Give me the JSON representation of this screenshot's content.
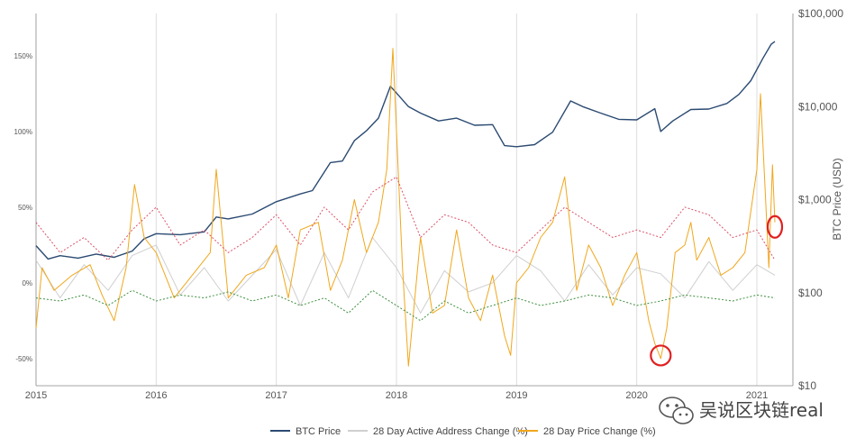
{
  "chart_data": {
    "type": "line",
    "x_ticks": [
      "2015",
      "2016",
      "2017",
      "2018",
      "2019",
      "2020",
      "2021"
    ],
    "left_axis": {
      "ticks": [
        "150%",
        "100%",
        "50%",
        "0%",
        "-50%"
      ],
      "values": [
        150,
        100,
        50,
        0,
        -50
      ],
      "range": [
        -68,
        178
      ]
    },
    "right_axis": {
      "label": "BTC Price (USD)",
      "scale": "log",
      "ticks": [
        "$100,000",
        "$10,000",
        "$1,000",
        "$100",
        "$10"
      ],
      "values": [
        100000,
        10000,
        1000,
        100,
        10
      ],
      "range": [
        10,
        100000
      ]
    },
    "x_range": [
      2015.0,
      2021.3
    ],
    "series": [
      {
        "name": "BTC Price",
        "color": "#2b4a72",
        "axis": "right",
        "x": [
          2015.0,
          2015.1,
          2015.2,
          2015.35,
          2015.5,
          2015.65,
          2015.8,
          2015.9,
          2016.0,
          2016.2,
          2016.4,
          2016.5,
          2016.6,
          2016.8,
          2017.0,
          2017.2,
          2017.3,
          2017.45,
          2017.55,
          2017.65,
          2017.75,
          2017.85,
          2017.95,
          2018.0,
          2018.1,
          2018.2,
          2018.35,
          2018.5,
          2018.65,
          2018.8,
          2018.9,
          2019.0,
          2019.15,
          2019.3,
          2019.45,
          2019.55,
          2019.7,
          2019.85,
          2020.0,
          2020.15,
          2020.2,
          2020.3,
          2020.45,
          2020.6,
          2020.75,
          2020.85,
          2020.95,
          2021.05,
          2021.12,
          2021.15
        ],
        "y": [
          320,
          230,
          250,
          235,
          260,
          240,
          280,
          380,
          430,
          420,
          450,
          650,
          620,
          700,
          950,
          1150,
          1250,
          2500,
          2600,
          4300,
          5500,
          7500,
          16500,
          14000,
          10000,
          8500,
          7000,
          7500,
          6300,
          6400,
          3800,
          3700,
          3900,
          5300,
          11500,
          10000,
          8500,
          7300,
          7200,
          9500,
          5400,
          7000,
          9300,
          9400,
          10800,
          13500,
          19000,
          33000,
          47000,
          50000
        ]
      },
      {
        "name": "28 Day Active Address Change (%)",
        "color": "#cfcfcf",
        "axis": "left",
        "x": [
          2015.0,
          2015.2,
          2015.4,
          2015.6,
          2015.8,
          2016.0,
          2016.2,
          2016.4,
          2016.6,
          2016.8,
          2017.0,
          2017.2,
          2017.4,
          2017.6,
          2017.8,
          2018.0,
          2018.2,
          2018.4,
          2018.6,
          2018.8,
          2019.0,
          2019.2,
          2019.4,
          2019.6,
          2019.8,
          2020.0,
          2020.2,
          2020.4,
          2020.6,
          2020.8,
          2021.0,
          2021.15
        ],
        "y": [
          15,
          -10,
          12,
          -5,
          18,
          25,
          -8,
          10,
          -12,
          5,
          22,
          -15,
          20,
          -10,
          30,
          10,
          -20,
          8,
          -6,
          0,
          18,
          8,
          -12,
          12,
          -8,
          10,
          6,
          -10,
          14,
          -5,
          12,
          5
        ]
      },
      {
        "name": "28 Day Price Change (%)",
        "color": "#f0a71c",
        "axis": "left",
        "x": [
          2015.0,
          2015.05,
          2015.15,
          2015.3,
          2015.45,
          2015.55,
          2015.65,
          2015.75,
          2015.82,
          2015.9,
          2016.0,
          2016.15,
          2016.3,
          2016.45,
          2016.5,
          2016.6,
          2016.75,
          2016.9,
          2017.0,
          2017.1,
          2017.2,
          2017.35,
          2017.45,
          2017.55,
          2017.65,
          2017.75,
          2017.85,
          2017.92,
          2017.97,
          2018.05,
          2018.1,
          2018.2,
          2018.3,
          2018.4,
          2018.5,
          2018.6,
          2018.7,
          2018.8,
          2018.9,
          2018.95,
          2019.0,
          2019.1,
          2019.2,
          2019.3,
          2019.4,
          2019.45,
          2019.5,
          2019.6,
          2019.7,
          2019.8,
          2019.9,
          2020.0,
          2020.1,
          2020.15,
          2020.2,
          2020.25,
          2020.32,
          2020.4,
          2020.45,
          2020.5,
          2020.6,
          2020.7,
          2020.8,
          2020.9,
          2021.0,
          2021.03,
          2021.07,
          2021.1,
          2021.13,
          2021.15
        ],
        "y": [
          -30,
          10,
          -5,
          5,
          12,
          -8,
          -25,
          10,
          65,
          30,
          20,
          -10,
          5,
          20,
          75,
          -10,
          5,
          10,
          25,
          -10,
          35,
          40,
          -5,
          15,
          55,
          20,
          40,
          75,
          155,
          10,
          -55,
          30,
          -20,
          -15,
          35,
          -10,
          -25,
          5,
          -35,
          -48,
          0,
          10,
          30,
          40,
          70,
          35,
          -5,
          25,
          10,
          -15,
          5,
          20,
          -25,
          -40,
          -50,
          -30,
          20,
          25,
          40,
          15,
          30,
          5,
          10,
          20,
          75,
          125,
          60,
          10,
          78,
          40
        ]
      },
      {
        "name": "",
        "color": "#d9536a",
        "axis": "left",
        "dashed": true,
        "x": [
          2015.0,
          2015.2,
          2015.4,
          2015.6,
          2015.8,
          2016.0,
          2016.2,
          2016.4,
          2016.6,
          2016.8,
          2017.0,
          2017.2,
          2017.4,
          2017.6,
          2017.8,
          2018.0,
          2018.2,
          2018.4,
          2018.6,
          2018.8,
          2019.0,
          2019.2,
          2019.4,
          2019.6,
          2019.8,
          2020.0,
          2020.2,
          2020.4,
          2020.6,
          2020.8,
          2021.0,
          2021.15
        ],
        "y": [
          40,
          20,
          30,
          15,
          35,
          50,
          25,
          35,
          20,
          30,
          45,
          25,
          50,
          35,
          60,
          70,
          30,
          45,
          40,
          25,
          20,
          35,
          50,
          40,
          30,
          35,
          30,
          50,
          45,
          30,
          35,
          15
        ]
      },
      {
        "name": "",
        "color": "#3f8f3f",
        "axis": "left",
        "dashed": true,
        "x": [
          2015.0,
          2015.2,
          2015.4,
          2015.6,
          2015.8,
          2016.0,
          2016.2,
          2016.4,
          2016.6,
          2016.8,
          2017.0,
          2017.2,
          2017.4,
          2017.6,
          2017.8,
          2018.0,
          2018.2,
          2018.4,
          2018.6,
          2018.8,
          2019.0,
          2019.2,
          2019.4,
          2019.6,
          2019.8,
          2020.0,
          2020.2,
          2020.4,
          2020.6,
          2020.8,
          2021.0,
          2021.15
        ],
        "y": [
          -10,
          -12,
          -8,
          -15,
          -5,
          -12,
          -8,
          -10,
          -6,
          -12,
          -8,
          -15,
          -10,
          -20,
          -5,
          -15,
          -25,
          -12,
          -20,
          -15,
          -10,
          -15,
          -12,
          -8,
          -10,
          -15,
          -12,
          -8,
          -10,
          -12,
          -8,
          -10
        ]
      }
    ],
    "annotations": [
      {
        "shape": "circle",
        "x": 2020.2,
        "axis": "left",
        "y": -48,
        "color": "#e02020"
      },
      {
        "shape": "ellipse",
        "x": 2021.15,
        "axis": "left",
        "y": 37,
        "color": "#e02020"
      }
    ],
    "legend": {
      "placement": "bottom",
      "items": [
        {
          "label": "BTC Price",
          "color": "#2b4a72"
        },
        {
          "label": "28 Day Active Address Change (%)",
          "color": "#cfcfcf"
        },
        {
          "label": "28 Day Price Change (%)",
          "color": "#f0a71c"
        }
      ]
    },
    "grid": {
      "vertical": true,
      "horizontal": false
    },
    "watermark": {
      "text": "吴说区块链real",
      "icon": "wechat-icon"
    }
  }
}
